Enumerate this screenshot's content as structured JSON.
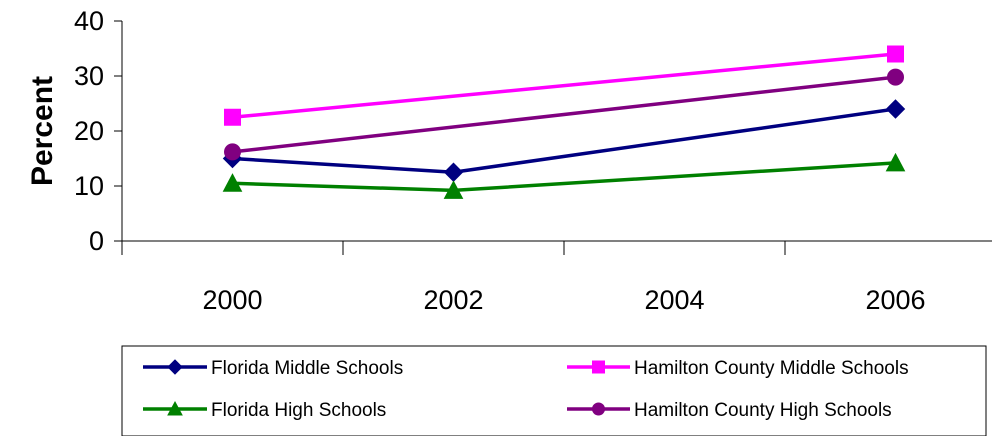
{
  "chart_data": {
    "type": "line",
    "title": "",
    "xlabel": "",
    "ylabel": "Percent",
    "x": [
      "2000",
      "2002",
      "2004",
      "2006"
    ],
    "ylim": [
      0,
      40
    ],
    "yticks": [
      "0",
      "10",
      "20",
      "30",
      "40"
    ],
    "grid": false,
    "legend_position": "bottom",
    "series": [
      {
        "name": "Florida Middle Schools",
        "color": "#000080",
        "marker": "diamond",
        "points": [
          {
            "x": "2000",
            "y": 15
          },
          {
            "x": "2002",
            "y": 12.5
          },
          {
            "x": "2006",
            "y": 24
          }
        ]
      },
      {
        "name": "Hamilton County Middle Schools",
        "color": "#ff00ff",
        "marker": "square",
        "points": [
          {
            "x": "2000",
            "y": 22.5
          },
          {
            "x": "2006",
            "y": 34
          }
        ]
      },
      {
        "name": "Florida High Schools",
        "color": "#008000",
        "marker": "triangle",
        "points": [
          {
            "x": "2000",
            "y": 10.5
          },
          {
            "x": "2002",
            "y": 9.2
          },
          {
            "x": "2006",
            "y": 14.2
          }
        ]
      },
      {
        "name": "Hamilton County High Schools",
        "color": "#800080",
        "marker": "circle",
        "points": [
          {
            "x": "2000",
            "y": 16.2
          },
          {
            "x": "2006",
            "y": 29.8
          }
        ]
      }
    ]
  }
}
